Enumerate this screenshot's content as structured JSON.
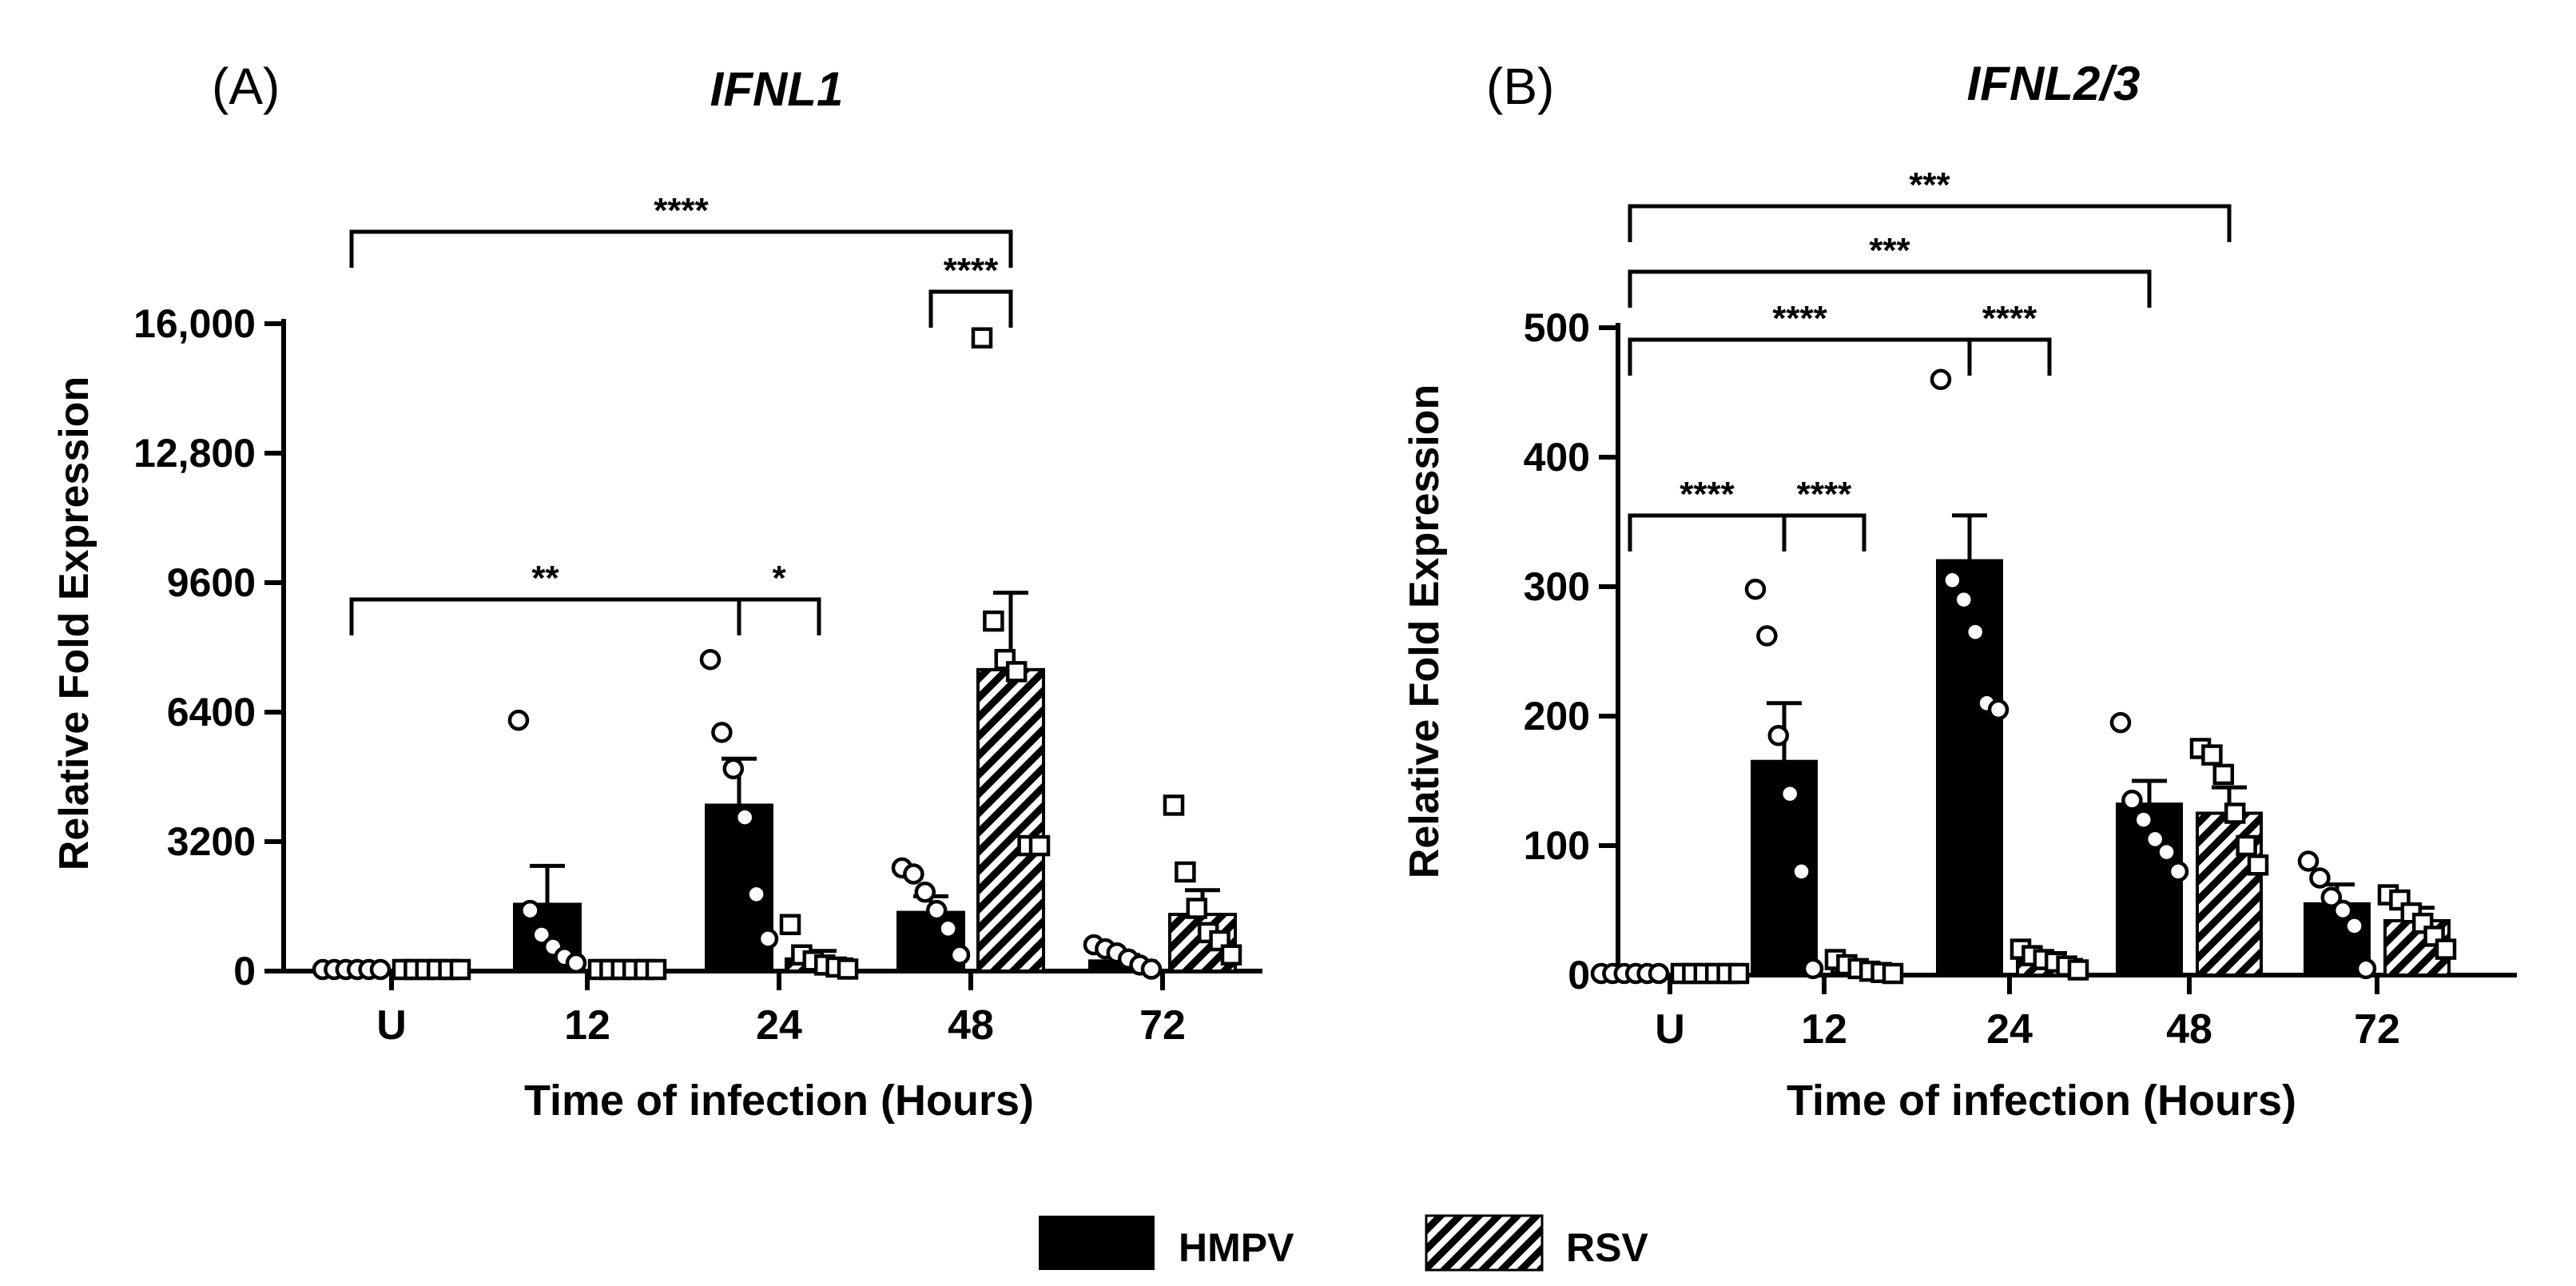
{
  "chart_data": [
    {
      "type": "bar",
      "panel_label": "(A)",
      "title": "IFNL1",
      "xlabel": "Time of infection (Hours)",
      "ylabel": "Relative Fold Expression",
      "ylim": [
        0,
        16000
      ],
      "yticks": [
        0,
        3200,
        6400,
        9600,
        12800,
        16000
      ],
      "ytick_labels": [
        "0",
        "3200",
        "6400",
        "9600",
        "12,800",
        "16,000"
      ],
      "categories": [
        "U",
        "12",
        "24",
        "48",
        "72"
      ],
      "series": [
        {
          "name": "HMPV",
          "values": [
            0,
            1650,
            4100,
            1450,
            250
          ],
          "errors": [
            0,
            950,
            1150,
            400,
            150
          ],
          "points": [
            [
              0,
              0,
              0,
              0,
              0,
              0
            ],
            [
              6200,
              1500,
              900,
              600,
              350,
              200
            ],
            [
              7700,
              5900,
              5000,
              3800,
              1900,
              800
            ],
            [
              2550,
              2400,
              1950,
              1500,
              1050,
              400
            ],
            [
              650,
              550,
              450,
              300,
              150,
              50
            ]
          ]
        },
        {
          "name": "RSV",
          "values": [
            0,
            0,
            300,
            7450,
            1400
          ],
          "errors": [
            0,
            0,
            200,
            1900,
            600
          ],
          "points": [
            [
              0,
              0,
              0,
              0,
              0,
              0
            ],
            [
              0,
              0,
              0,
              0,
              0,
              0
            ],
            [
              1150,
              400,
              250,
              150,
              100,
              50
            ],
            [
              15650,
              8650,
              7700,
              7400,
              3100,
              3100
            ],
            [
              4100,
              2450,
              1550,
              950,
              750,
              400
            ]
          ]
        }
      ],
      "significance": [
        {
          "label": "****"
        },
        {
          "label": "**"
        },
        {
          "label": "*"
        },
        {
          "label": "****"
        }
      ]
    },
    {
      "type": "bar",
      "panel_label": "(B)",
      "title": "IFNL2/3",
      "xlabel": "Time of infection (Hours)",
      "ylabel": "Relative Fold Expression",
      "ylim": [
        0,
        500
      ],
      "yticks": [
        0,
        100,
        200,
        300,
        400,
        500
      ],
      "ytick_labels": [
        "0",
        "100",
        "200",
        "300",
        "400",
        "500"
      ],
      "categories": [
        "U",
        "12",
        "24",
        "48",
        "72"
      ],
      "series": [
        {
          "name": "HMPV",
          "values": [
            0,
            165,
            320,
            132,
            55
          ],
          "errors": [
            0,
            45,
            35,
            18,
            15
          ],
          "points": [
            [
              0,
              0,
              0,
              0,
              0,
              0
            ],
            [
              298,
              262,
              185,
              140,
              80,
              5
            ],
            [
              460,
              305,
              290,
              265,
              210,
              205
            ],
            [
              195,
              135,
              120,
              105,
              95,
              80
            ],
            [
              88,
              75,
              60,
              50,
              38,
              5
            ]
          ]
        },
        {
          "name": "RSV",
          "values": [
            0,
            5,
            12,
            125,
            42
          ],
          "errors": [
            0,
            3,
            5,
            20,
            10
          ],
          "points": [
            [
              0,
              0,
              0,
              0,
              0,
              0
            ],
            [
              12,
              8,
              5,
              3,
              2,
              1
            ],
            [
              20,
              15,
              12,
              10,
              7,
              4
            ],
            [
              175,
              170,
              155,
              125,
              100,
              85
            ],
            [
              62,
              58,
              48,
              40,
              30,
              20
            ]
          ]
        }
      ],
      "significance": [
        {
          "label": "***"
        },
        {
          "label": "***"
        },
        {
          "label": "****"
        },
        {
          "label": "****"
        },
        {
          "label": "****"
        },
        {
          "label": "****"
        }
      ]
    }
  ],
  "legend": {
    "items": [
      {
        "label": "HMPV",
        "pattern": "solid"
      },
      {
        "label": "RSV",
        "pattern": "hatched"
      }
    ]
  },
  "colors": {
    "ink": "#000000",
    "paper": "#ffffff"
  }
}
